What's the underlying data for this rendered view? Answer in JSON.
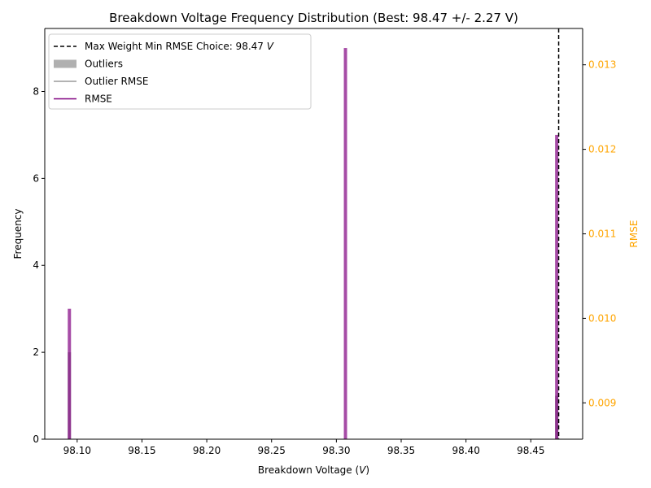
{
  "chart_data": {
    "type": "bar",
    "title": "Breakdown Voltage Frequency Distribution (Best: 98.47 +/- 2.27 V)",
    "xlabel": "Breakdown Voltage (",
    "xlabel_var": "V",
    "xlabel_end": ")",
    "ylabel": "Frequency",
    "ylabel_right": "RMSE",
    "xlim": [
      98.075,
      98.49
    ],
    "ylim": [
      0,
      9.45
    ],
    "ylim_right": [
      0.00857,
      0.01343
    ],
    "x_ticks": [
      {
        "value": 98.1,
        "label": "98.10"
      },
      {
        "value": 98.15,
        "label": "98.15"
      },
      {
        "value": 98.2,
        "label": "98.20"
      },
      {
        "value": 98.25,
        "label": "98.25"
      },
      {
        "value": 98.3,
        "label": "98.30"
      },
      {
        "value": 98.35,
        "label": "98.35"
      },
      {
        "value": 98.4,
        "label": "98.40"
      },
      {
        "value": 98.45,
        "label": "98.45"
      }
    ],
    "y_ticks": [
      {
        "value": 0,
        "label": "0"
      },
      {
        "value": 2,
        "label": "2"
      },
      {
        "value": 4,
        "label": "4"
      },
      {
        "value": 6,
        "label": "6"
      },
      {
        "value": 8,
        "label": "8"
      }
    ],
    "y_right_ticks": [
      {
        "value": 0.009,
        "label": "0.009"
      },
      {
        "value": 0.01,
        "label": "0.010"
      },
      {
        "value": 0.011,
        "label": "0.011"
      },
      {
        "value": 0.012,
        "label": "0.012"
      },
      {
        "value": 0.013,
        "label": "0.013"
      }
    ],
    "series": [
      {
        "name": "RMSE",
        "color": "#800080",
        "opacity": 0.7,
        "x": [
          98.094,
          98.307,
          98.47
        ],
        "values": [
          3,
          9,
          7
        ]
      },
      {
        "name": "Outliers",
        "color": "#808080",
        "opacity": 0.6,
        "x": [
          98.094,
          98.47
        ],
        "values": [
          2,
          1
        ]
      }
    ],
    "bar_width": 0.0025,
    "vline": {
      "x": 98.4715,
      "label_prefix": "Max Weight Min RMSE Choice: 98.47 ",
      "label_var": "V",
      "color": "#000000",
      "style": "dashed"
    },
    "legend": {
      "position": "top-left",
      "entries": [
        {
          "label": "Max Weight Min RMSE Choice: 98.47 ",
          "label_var": "V",
          "kind": "dashed-line",
          "color": "#000000"
        },
        {
          "label": "Outliers",
          "kind": "patch",
          "color": "#b0b0b0"
        },
        {
          "label": "Outlier RMSE",
          "kind": "line",
          "color": "#9a9a9a"
        },
        {
          "label": "RMSE",
          "kind": "line",
          "color": "#800080"
        }
      ]
    },
    "right_axis_color": "#FFA500",
    "grid": false
  }
}
